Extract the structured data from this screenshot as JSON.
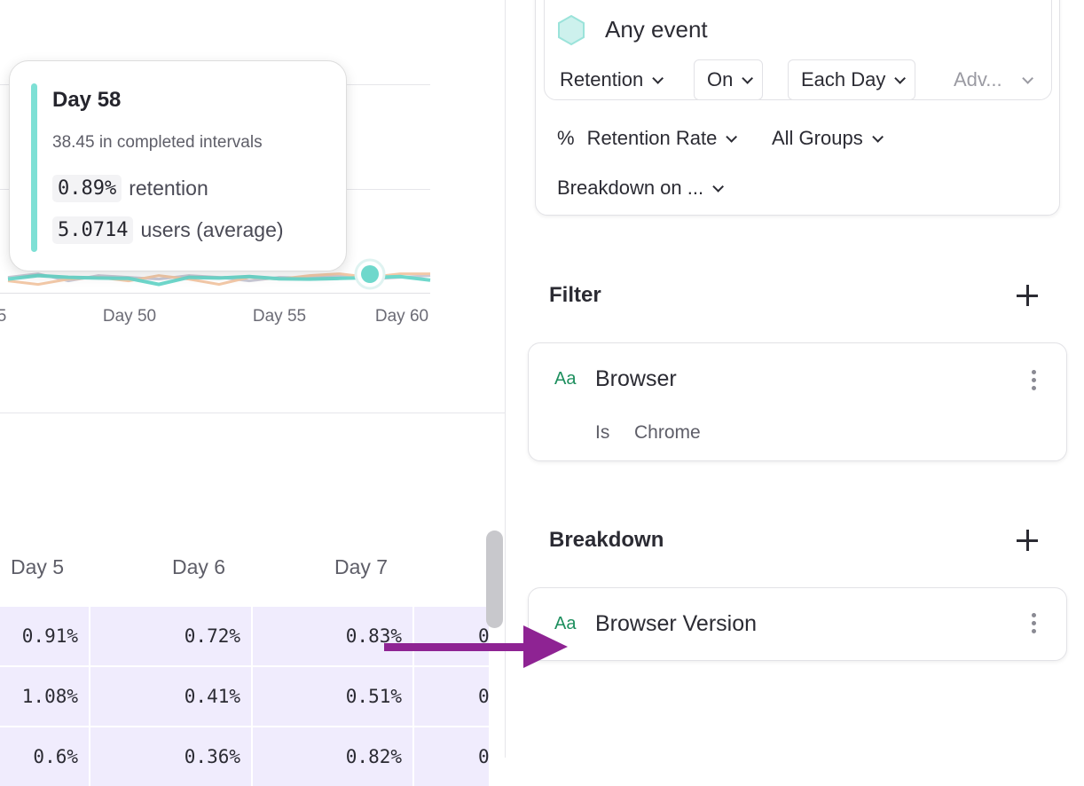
{
  "chart_data": {
    "type": "line",
    "x_tick_labels": [
      "5",
      "Day 50",
      "Day 55",
      "Day 60"
    ],
    "grid": true,
    "series": [
      {
        "color": "#6fd8cc",
        "x": [
          46,
          47,
          48,
          49,
          50,
          51,
          52,
          53,
          54,
          55,
          56,
          57,
          58,
          59,
          60
        ],
        "values": [
          0.85,
          0.95,
          0.9,
          0.88,
          0.87,
          0.7,
          0.9,
          0.88,
          0.92,
          0.86,
          0.85,
          0.87,
          0.89,
          0.92,
          0.82
        ]
      },
      {
        "color": "#f3c9a8",
        "x": [
          46,
          47,
          48,
          49,
          50,
          51,
          52,
          53,
          54,
          55,
          56,
          57,
          58,
          59,
          60
        ],
        "values": [
          0.8,
          0.7,
          0.85,
          0.9,
          0.8,
          0.95,
          0.85,
          0.7,
          0.9,
          0.85,
          0.95,
          1.0,
          0.9,
          1.0,
          1.0
        ]
      },
      {
        "color": "#c9c9d6",
        "x": [
          46,
          47,
          48,
          49,
          50,
          51,
          52,
          53,
          54,
          55,
          56,
          57,
          58,
          59,
          60
        ],
        "values": [
          0.9,
          1.0,
          0.8,
          0.95,
          0.9,
          0.85,
          0.95,
          0.9,
          0.8,
          0.9,
          0.88,
          0.95,
          0.85,
          0.9,
          0.95
        ]
      }
    ],
    "highlight": {
      "x": 58,
      "value": 0.89
    }
  },
  "tooltip": {
    "title": "Day 58",
    "subtitle": "38.45 in completed intervals",
    "retention_value": "0.89%",
    "retention_label": "retention",
    "users_value": "5.0714",
    "users_label": "users (average)",
    "accent": "#7ee0d5"
  },
  "table": {
    "headers": [
      "Day 5",
      "Day 6",
      "Day 7"
    ],
    "rows": [
      [
        "0.91%",
        "0.72%",
        "0.83%",
        "0"
      ],
      [
        "1.08%",
        "0.41%",
        "0.51%",
        "0"
      ],
      [
        "0.6%",
        "0.36%",
        "0.82%",
        "0"
      ]
    ]
  },
  "query": {
    "event": "Any event",
    "retention": "Retention",
    "on": "On",
    "interval": "Each Day",
    "advanced": "Adv...",
    "measure_prefix": "%",
    "measure": "Retention Rate",
    "groups": "All Groups",
    "breakdown_on": "Breakdown on ..."
  },
  "filter": {
    "heading": "Filter",
    "type_icon": "Aa",
    "property": "Browser",
    "operator": "Is",
    "value": "Chrome"
  },
  "breakdown": {
    "heading": "Breakdown",
    "type_icon": "Aa",
    "property": "Browser Version"
  },
  "annotation_color": "#8e2393"
}
